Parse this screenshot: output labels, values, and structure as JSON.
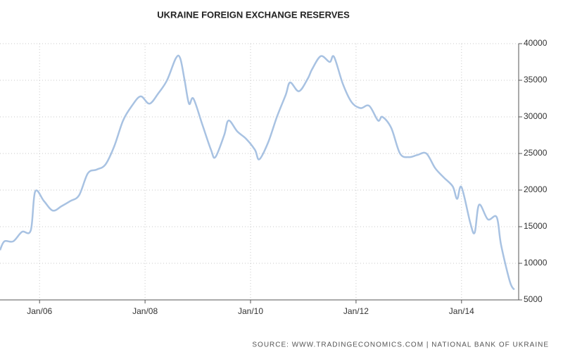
{
  "chart_data": {
    "type": "line",
    "title": "UKRAINE FOREIGN EXCHANGE RESERVES",
    "source": "SOURCE: WWW.TRADINGECONOMICS.COM | NATIONAL BANK OF UKRAINE",
    "x": [
      "2005-04",
      "2005-05",
      "2005-07",
      "2005-09",
      "2005-11",
      "2005-12",
      "2006-02",
      "2006-04",
      "2006-06",
      "2006-08",
      "2006-10",
      "2006-12",
      "2007-02",
      "2007-04",
      "2007-06",
      "2007-08",
      "2007-10",
      "2007-12",
      "2008-02",
      "2008-04",
      "2008-06",
      "2008-08",
      "2008-09",
      "2008-10",
      "2008-11",
      "2008-12",
      "2009-02",
      "2009-04",
      "2009-05",
      "2009-07",
      "2009-08",
      "2009-10",
      "2009-12",
      "2010-02",
      "2010-03",
      "2010-05",
      "2010-07",
      "2010-09",
      "2010-10",
      "2010-12",
      "2011-02",
      "2011-03",
      "2011-05",
      "2011-07",
      "2011-08",
      "2011-10",
      "2011-12",
      "2012-02",
      "2012-04",
      "2012-06",
      "2012-07",
      "2012-09",
      "2012-11",
      "2013-01",
      "2013-03",
      "2013-05",
      "2013-07",
      "2013-09",
      "2013-11",
      "2013-12",
      "2014-01",
      "2014-03",
      "2014-04",
      "2014-05",
      "2014-07",
      "2014-09",
      "2014-10",
      "2014-12",
      "2015-01"
    ],
    "series": [
      {
        "name": "Foreign Exchange Reserves",
        "color": "#a8c2e2",
        "values": [
          11800,
          13000,
          13000,
          14300,
          14500,
          19800,
          18500,
          17200,
          17800,
          18500,
          19300,
          22300,
          22800,
          23500,
          26000,
          29500,
          31500,
          32800,
          31800,
          33200,
          35000,
          38000,
          38000,
          35000,
          31800,
          32500,
          29000,
          25500,
          24500,
          27500,
          29500,
          28000,
          27000,
          25500,
          24200,
          26500,
          30000,
          33000,
          34700,
          33500,
          35200,
          36500,
          38300,
          37500,
          38200,
          34500,
          32000,
          31200,
          31500,
          29500,
          30000,
          28500,
          25000,
          24500,
          24800,
          25000,
          23000,
          21700,
          20500,
          18800,
          20400,
          15500,
          14200,
          18000,
          16000,
          16300,
          12500,
          7500,
          6400
        ]
      }
    ],
    "xlim": [
      "2005-04",
      "2015-02"
    ],
    "xticks": [
      {
        "value": "2006-01",
        "label": "Jan/06"
      },
      {
        "value": "2008-01",
        "label": "Jan/08"
      },
      {
        "value": "2010-01",
        "label": "Jan/10"
      },
      {
        "value": "2012-01",
        "label": "Jan/12"
      },
      {
        "value": "2014-01",
        "label": "Jan/14"
      }
    ],
    "ylim": [
      5000,
      40000
    ],
    "yticks": [
      5000,
      10000,
      15000,
      20000,
      25000,
      30000,
      35000,
      40000
    ],
    "grid": true
  }
}
